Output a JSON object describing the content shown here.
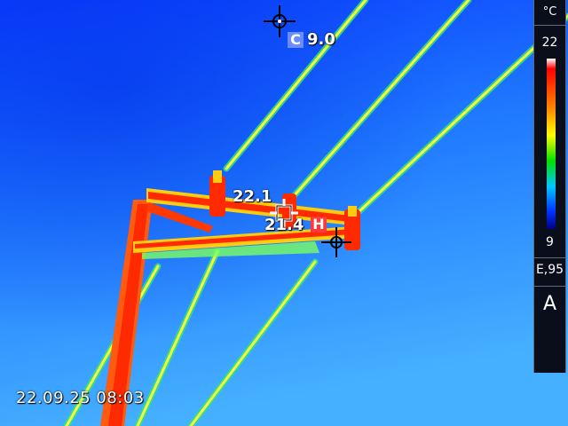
{
  "readings": {
    "cold_value": "9.0",
    "cold_marker": "C",
    "hot_value": "21.4",
    "hot_marker": "H",
    "spot_value": "22.1"
  },
  "timestamp": "22.09.25 08:03",
  "scale": {
    "unit": "°C",
    "max": "22",
    "min": "9",
    "emissivity": "E,95",
    "mode": "A"
  },
  "colors": {
    "sky": "#1a5cff",
    "hot": "#ff2a00",
    "warm": "#ffd400",
    "cold_marker_bg": "#6a8cff",
    "hot_marker_bg": "#ff3a3a"
  }
}
